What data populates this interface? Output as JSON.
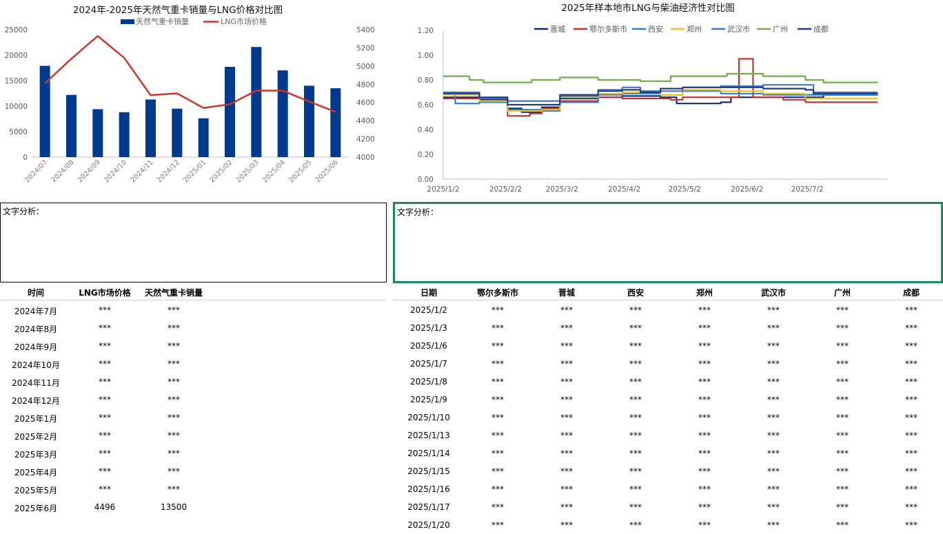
{
  "chart_data": [
    {
      "type": "bar",
      "title": "2024年-2025年天然气重卡销量与LNG价格对比图",
      "categories": [
        "2024/07",
        "2024/08",
        "2024/09",
        "2024/10",
        "2024/11",
        "2024/12",
        "2025/01",
        "2025/02",
        "2025/03",
        "2025/04",
        "2025/05",
        "2025/06"
      ],
      "series": [
        {
          "name": "天然气重卡销量",
          "kind": "bar",
          "axis": "left",
          "color": "#003a8c",
          "values": [
            17900,
            12200,
            9400,
            8800,
            11300,
            9500,
            7600,
            17700,
            21600,
            17000,
            14000,
            13500
          ]
        },
        {
          "name": "LNG市场价格",
          "kind": "line",
          "axis": "right",
          "color": "#c8372d",
          "values": [
            4810,
            5080,
            5330,
            5090,
            4680,
            4700,
            4540,
            4580,
            4730,
            4730,
            4610,
            4496
          ]
        }
      ],
      "ylim_left": [
        0,
        25000
      ],
      "yticks_left": [
        "0",
        "5000",
        "10000",
        "15000",
        "20000",
        "25000"
      ],
      "ylim_right": [
        4000,
        5400
      ],
      "yticks_right": [
        "4000",
        "4200",
        "4400",
        "4600",
        "4800",
        "5000",
        "5200",
        "5400"
      ],
      "legend": "top",
      "grid": false
    },
    {
      "type": "line",
      "title": "2025年样本地市LNG与柴油经济性对比图",
      "xticks": [
        "2025/1/2",
        "2025/2/2",
        "2025/3/2",
        "2025/4/2",
        "2025/5/2",
        "2025/6/2",
        "2025/7/2"
      ],
      "ylim": [
        0,
        1.2
      ],
      "yticks": [
        "0.00",
        "0.20",
        "0.40",
        "0.60",
        "0.80",
        "1.00",
        "1.20"
      ],
      "legend": "top",
      "grid": false,
      "series": [
        {
          "name": "晋城",
          "color": "#0d2f73",
          "points": [
            [
              "2025/1/2",
              0.66
            ],
            [
              "2025/1/20",
              0.64
            ],
            [
              "2025/2/3",
              0.57
            ],
            [
              "2025/2/10",
              0.54
            ],
            [
              "2025/2/20",
              0.58
            ],
            [
              "2025/3/1",
              0.65
            ],
            [
              "2025/3/20",
              0.66
            ],
            [
              "2025/4/1",
              0.67
            ],
            [
              "2025/4/20",
              0.66
            ],
            [
              "2025/4/28",
              0.61
            ],
            [
              "2025/5/20",
              0.62
            ],
            [
              "2025/5/25",
              0.66
            ],
            [
              "2025/6/20",
              0.66
            ],
            [
              "2025/7/1",
              0.66
            ],
            [
              "2025/7/10",
              0.68
            ],
            [
              "2025/8/6",
              0.68
            ]
          ]
        },
        {
          "name": "鄂尔多斯市",
          "color": "#c8302a",
          "points": [
            [
              "2025/1/2",
              0.65
            ],
            [
              "2025/1/20",
              0.63
            ],
            [
              "2025/2/3",
              0.51
            ],
            [
              "2025/2/14",
              0.53
            ],
            [
              "2025/2/20",
              0.57
            ],
            [
              "2025/3/1",
              0.63
            ],
            [
              "2025/3/20",
              0.66
            ],
            [
              "2025/4/1",
              0.65
            ],
            [
              "2025/4/25",
              0.64
            ],
            [
              "2025/5/1",
              0.66
            ],
            [
              "2025/5/27",
              0.66
            ],
            [
              "2025/5/29",
              0.97
            ],
            [
              "2025/6/3",
              0.97
            ],
            [
              "2025/6/5",
              0.66
            ],
            [
              "2025/6/20",
              0.64
            ],
            [
              "2025/7/1",
              0.62
            ],
            [
              "2025/8/6",
              0.62
            ]
          ]
        },
        {
          "name": "西安",
          "color": "#2a7fd8",
          "points": [
            [
              "2025/1/2",
              0.7
            ],
            [
              "2025/1/8",
              0.61
            ],
            [
              "2025/1/20",
              0.62
            ],
            [
              "2025/2/3",
              0.56
            ],
            [
              "2025/2/20",
              0.55
            ],
            [
              "2025/3/1",
              0.62
            ],
            [
              "2025/3/20",
              0.68
            ],
            [
              "2025/4/1",
              0.69
            ],
            [
              "2025/4/20",
              0.68
            ],
            [
              "2025/5/1",
              0.71
            ],
            [
              "2025/5/20",
              0.69
            ],
            [
              "2025/6/10",
              0.68
            ],
            [
              "2025/7/1",
              0.68
            ],
            [
              "2025/8/6",
              0.68
            ]
          ]
        },
        {
          "name": "郑州",
          "color": "#f0c41a",
          "points": [
            [
              "2025/1/2",
              0.68
            ],
            [
              "2025/1/20",
              0.63
            ],
            [
              "2025/2/3",
              0.55
            ],
            [
              "2025/2/20",
              0.56
            ],
            [
              "2025/3/1",
              0.66
            ],
            [
              "2025/3/20",
              0.69
            ],
            [
              "2025/4/1",
              0.7
            ],
            [
              "2025/4/20",
              0.68
            ],
            [
              "2025/5/1",
              0.72
            ],
            [
              "2025/5/20",
              0.71
            ],
            [
              "2025/6/10",
              0.69
            ],
            [
              "2025/7/1",
              0.65
            ],
            [
              "2025/8/6",
              0.65
            ]
          ]
        },
        {
          "name": "武汉市",
          "color": "#4472c4",
          "points": [
            [
              "2025/1/2",
              0.7
            ],
            [
              "2025/1/20",
              0.65
            ],
            [
              "2025/2/3",
              0.63
            ],
            [
              "2025/2/20",
              0.63
            ],
            [
              "2025/3/1",
              0.67
            ],
            [
              "2025/3/20",
              0.72
            ],
            [
              "2025/4/1",
              0.74
            ],
            [
              "2025/4/10",
              0.71
            ],
            [
              "2025/5/1",
              0.74
            ],
            [
              "2025/5/20",
              0.75
            ],
            [
              "2025/6/1",
              0.75
            ],
            [
              "2025/6/10",
              0.76
            ],
            [
              "2025/7/1",
              0.76
            ],
            [
              "2025/7/5",
              0.7
            ],
            [
              "2025/8/6",
              0.7
            ]
          ]
        },
        {
          "name": "广州",
          "color": "#70ad47",
          "points": [
            [
              "2025/1/2",
              0.83
            ],
            [
              "2025/1/15",
              0.8
            ],
            [
              "2025/1/22",
              0.78
            ],
            [
              "2025/2/10",
              0.78
            ],
            [
              "2025/2/15",
              0.8
            ],
            [
              "2025/3/1",
              0.82
            ],
            [
              "2025/3/20",
              0.8
            ],
            [
              "2025/4/1",
              0.8
            ],
            [
              "2025/4/10",
              0.79
            ],
            [
              "2025/4/25",
              0.83
            ],
            [
              "2025/5/20",
              0.83
            ],
            [
              "2025/5/23",
              0.85
            ],
            [
              "2025/6/10",
              0.83
            ],
            [
              "2025/7/1",
              0.8
            ],
            [
              "2025/7/10",
              0.78
            ],
            [
              "2025/8/6",
              0.78
            ]
          ]
        },
        {
          "name": "成都",
          "color": "#1f3f7a",
          "points": [
            [
              "2025/1/2",
              0.69
            ],
            [
              "2025/1/20",
              0.66
            ],
            [
              "2025/2/3",
              0.6
            ],
            [
              "2025/2/20",
              0.6
            ],
            [
              "2025/3/1",
              0.68
            ],
            [
              "2025/3/20",
              0.71
            ],
            [
              "2025/4/1",
              0.72
            ],
            [
              "2025/4/10",
              0.7
            ],
            [
              "2025/4/20",
              0.73
            ],
            [
              "2025/5/1",
              0.74
            ],
            [
              "2025/6/1",
              0.74
            ],
            [
              "2025/6/10",
              0.73
            ],
            [
              "2025/7/1",
              0.72
            ],
            [
              "2025/7/5",
              0.69
            ],
            [
              "2025/8/6",
              0.69
            ]
          ]
        }
      ]
    }
  ],
  "analysis": {
    "left_label": "文字分析：",
    "right_label": "文字分析："
  },
  "left_table": {
    "headers": [
      "时间",
      "LNG市场价格",
      "天然气重卡销量"
    ],
    "rows": [
      [
        "2024年7月",
        "***",
        "***"
      ],
      [
        "2024年8月",
        "***",
        "***"
      ],
      [
        "2024年9月",
        "***",
        "***"
      ],
      [
        "2024年10月",
        "***",
        "***"
      ],
      [
        "2024年11月",
        "***",
        "***"
      ],
      [
        "2024年12月",
        "***",
        "***"
      ],
      [
        "2025年1月",
        "***",
        "***"
      ],
      [
        "2025年2月",
        "***",
        "***"
      ],
      [
        "2025年3月",
        "***",
        "***"
      ],
      [
        "2025年4月",
        "***",
        "***"
      ],
      [
        "2025年5月",
        "***",
        "***"
      ],
      [
        "2025年6月",
        "4496",
        "13500"
      ]
    ]
  },
  "right_table": {
    "headers": [
      "日期",
      "鄂尔多斯市",
      "晋城",
      "西安",
      "郑州",
      "武汉市",
      "广州",
      "成都"
    ],
    "rows": [
      [
        "2025/1/2",
        "***",
        "***",
        "***",
        "***",
        "***",
        "***",
        "***"
      ],
      [
        "2025/1/3",
        "***",
        "***",
        "***",
        "***",
        "***",
        "***",
        "***"
      ],
      [
        "2025/1/6",
        "***",
        "***",
        "***",
        "***",
        "***",
        "***",
        "***"
      ],
      [
        "2025/1/7",
        "***",
        "***",
        "***",
        "***",
        "***",
        "***",
        "***"
      ],
      [
        "2025/1/8",
        "***",
        "***",
        "***",
        "***",
        "***",
        "***",
        "***"
      ],
      [
        "2025/1/9",
        "***",
        "***",
        "***",
        "***",
        "***",
        "***",
        "***"
      ],
      [
        "2025/1/10",
        "***",
        "***",
        "***",
        "***",
        "***",
        "***",
        "***"
      ],
      [
        "2025/1/13",
        "***",
        "***",
        "***",
        "***",
        "***",
        "***",
        "***"
      ],
      [
        "2025/1/14",
        "***",
        "***",
        "***",
        "***",
        "***",
        "***",
        "***"
      ],
      [
        "2025/1/15",
        "***",
        "***",
        "***",
        "***",
        "***",
        "***",
        "***"
      ],
      [
        "2025/1/16",
        "***",
        "***",
        "***",
        "***",
        "***",
        "***",
        "***"
      ],
      [
        "2025/1/17",
        "***",
        "***",
        "***",
        "***",
        "***",
        "***",
        "***"
      ],
      [
        "2025/1/20",
        "***",
        "***",
        "***",
        "***",
        "***",
        "***",
        "***"
      ]
    ]
  }
}
